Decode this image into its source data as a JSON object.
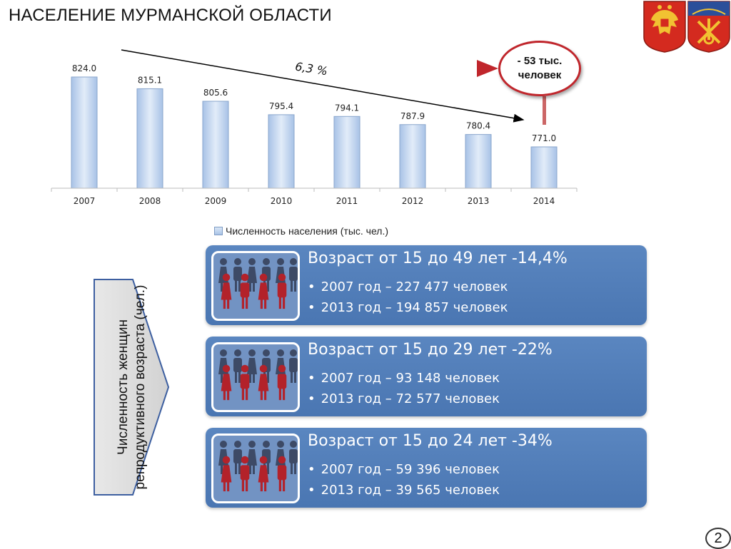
{
  "title": "НАСЕЛЕНИЕ МУРМАНСКОЙ ОБЛАСТИ",
  "chart_data": {
    "type": "bar",
    "categories": [
      "2007",
      "2008",
      "2009",
      "2010",
      "2011",
      "2012",
      "2013",
      "2014"
    ],
    "series": [
      {
        "name": "Численность населения (тыс. чел.)",
        "values": [
          824.0,
          815.1,
          805.6,
          795.4,
          794.1,
          787.9,
          780.4,
          771.0
        ]
      }
    ],
    "value_labels": [
      "824.0",
      "815.1",
      "805.6",
      "795.4",
      "794.1",
      "787.9",
      "780.4",
      "771.0"
    ],
    "trend_annotation": "6,3 %",
    "legend": "Численность населения (тыс. чел.)",
    "legend_position": "bottom",
    "grid": false,
    "colors": {
      "bar": "#c9daf2",
      "bar_edge": "#8aa6cc",
      "trend": "#000000"
    }
  },
  "callout": {
    "line1": "- 53 тыс.",
    "line2": "человек",
    "color": "#c0262c"
  },
  "side_label": "Численность женщин репродуктивного возраста (чел.)",
  "panels": [
    {
      "title": "Возраст от 15 до 49 лет -14,4%",
      "items": [
        "2007 год – 227 477 человек",
        "2013 год – 194 857 человек"
      ]
    },
    {
      "title": "Возраст от 15 до 29 лет -22%",
      "items": [
        "2007 год – 93 148 человек",
        "2013 год – 72 577 человек"
      ]
    },
    {
      "title": "Возраст от 15 до 24 лет -34%",
      "items": [
        "2007 год – 59 396 человек",
        "2013 год – 39 565 человек"
      ]
    }
  ],
  "icons": {
    "emblem_left": "russia-coat-of-arms-icon",
    "emblem_right": "murmansk-coat-of-arms-icon",
    "people": "people-group-icon"
  },
  "page_number": "2"
}
